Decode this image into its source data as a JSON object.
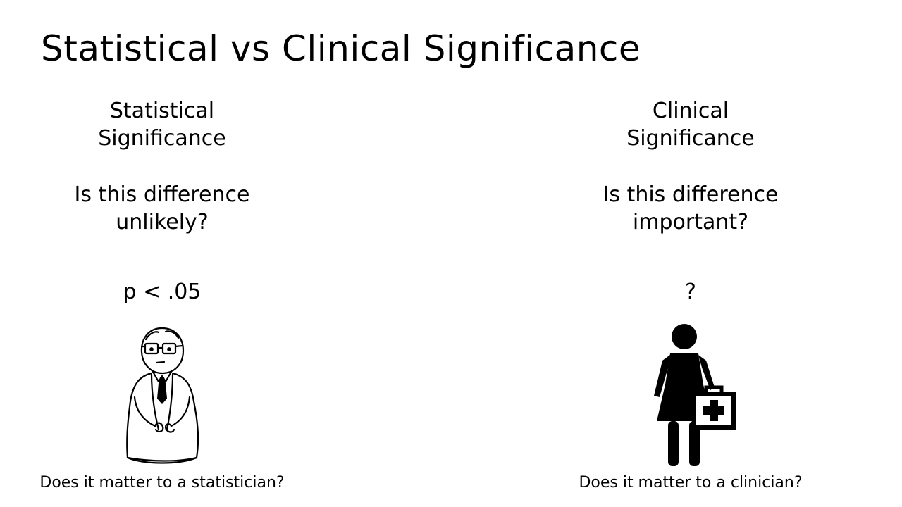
{
  "title": "Statistical vs Clinical Significance",
  "left": {
    "heading": [
      "Statistical",
      "Significance"
    ],
    "question": [
      "Is this difference",
      "unlikely?"
    ],
    "threshold": "p < .05",
    "caption": "Does it matter to a statistician?",
    "figure_icon": "statistician-icon"
  },
  "right": {
    "heading": [
      "Clinical",
      "Significance"
    ],
    "question": [
      "Is this difference",
      "important?"
    ],
    "threshold": "?",
    "caption": "Does it matter to a clinician?",
    "figure_icon": "clinician-icon"
  },
  "colors": {
    "background": "#ffffff",
    "text": "#000000"
  }
}
